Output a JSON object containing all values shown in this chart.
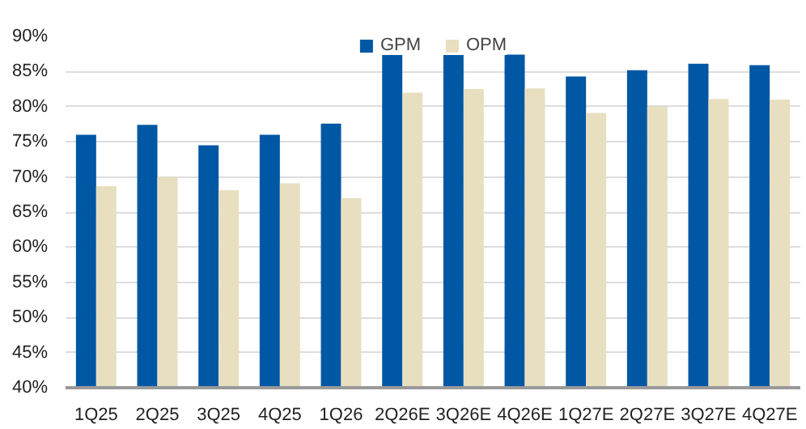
{
  "chart_data": {
    "type": "bar",
    "categories": [
      "1Q25",
      "2Q25",
      "3Q25",
      "4Q25",
      "1Q26",
      "2Q26E",
      "3Q26E",
      "4Q26E",
      "1Q27E",
      "2Q27E",
      "3Q27E",
      "4Q27E"
    ],
    "series": [
      {
        "name": "GPM",
        "color": "#0057a4",
        "values": [
          76.0,
          77.4,
          74.5,
          76.0,
          77.6,
          87.4,
          87.4,
          87.4,
          84.3,
          85.2,
          86.1,
          85.9
        ]
      },
      {
        "name": "OPM",
        "color": "#e8dfc0",
        "values": [
          68.7,
          70.0,
          68.1,
          69.1,
          67.0,
          82.0,
          82.5,
          82.6,
          79.1,
          80.0,
          81.1,
          81.0
        ]
      }
    ],
    "ylim": [
      40,
      90
    ],
    "yticks": [
      {
        "value": 40,
        "label": "40%"
      },
      {
        "value": 45,
        "label": "45%"
      },
      {
        "value": 50,
        "label": "50%"
      },
      {
        "value": 55,
        "label": "55%"
      },
      {
        "value": 60,
        "label": "60%"
      },
      {
        "value": 65,
        "label": "65%"
      },
      {
        "value": 70,
        "label": "70%"
      },
      {
        "value": 75,
        "label": "75%"
      },
      {
        "value": 80,
        "label": "80%"
      },
      {
        "value": 85,
        "label": "85%"
      },
      {
        "value": 90,
        "label": "90%"
      }
    ],
    "grid": "y",
    "legend": "top"
  }
}
